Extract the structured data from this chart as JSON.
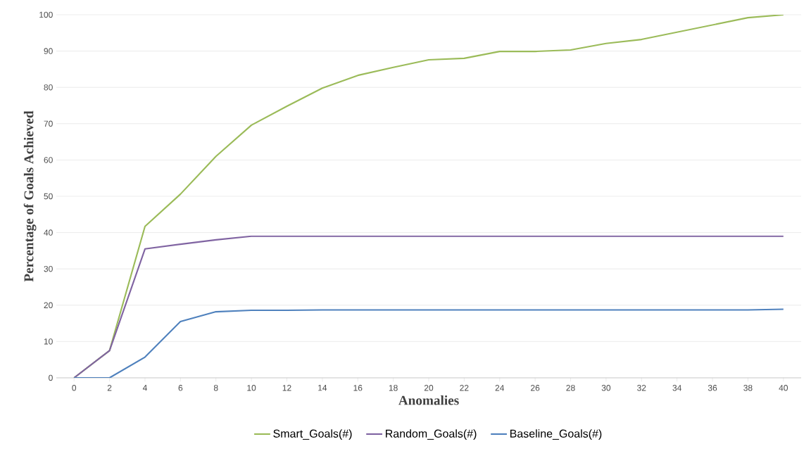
{
  "chart_data": {
    "type": "line",
    "xlabel": "Anomalies",
    "ylabel": "Percentage of Goals Achieved",
    "x": [
      0,
      2,
      4,
      6,
      8,
      10,
      12,
      14,
      16,
      18,
      20,
      22,
      24,
      26,
      28,
      30,
      32,
      34,
      36,
      38,
      40
    ],
    "series": [
      {
        "name": "Smart_Goals(#)",
        "color": "#9bbb59",
        "values": [
          0,
          7.5,
          41.7,
          50.6,
          61,
          69.6,
          74.8,
          79.8,
          83.3,
          85.5,
          87.6,
          88,
          89.9,
          89.9,
          90.3,
          92.1,
          93.2,
          95.2,
          97.2,
          99.2,
          100
        ]
      },
      {
        "name": "Random_Goals(#)",
        "color": "#8064a2",
        "values": [
          0,
          7.5,
          35.5,
          36.8,
          38,
          39,
          39,
          39,
          39,
          39,
          39,
          39,
          39,
          39,
          39,
          39,
          39,
          39,
          39,
          39,
          39
        ]
      },
      {
        "name": "Baseline_Goals(#)",
        "color": "#4f81bd",
        "values": [
          0,
          0,
          5.7,
          15.5,
          18.2,
          18.6,
          18.6,
          18.7,
          18.7,
          18.7,
          18.7,
          18.7,
          18.7,
          18.7,
          18.7,
          18.7,
          18.7,
          18.7,
          18.7,
          18.7,
          18.9
        ]
      }
    ],
    "xlim": [
      -1,
      41
    ],
    "xticks": [
      0,
      2,
      4,
      6,
      8,
      10,
      12,
      14,
      16,
      18,
      20,
      22,
      24,
      26,
      28,
      30,
      32,
      34,
      36,
      38,
      40
    ],
    "ylim": [
      0,
      100
    ],
    "yticks": [
      0,
      10,
      20,
      30,
      40,
      50,
      60,
      70,
      80,
      90,
      100
    ],
    "grid": "y",
    "legend": "bottom",
    "marker": "none",
    "line_style": "solid"
  }
}
